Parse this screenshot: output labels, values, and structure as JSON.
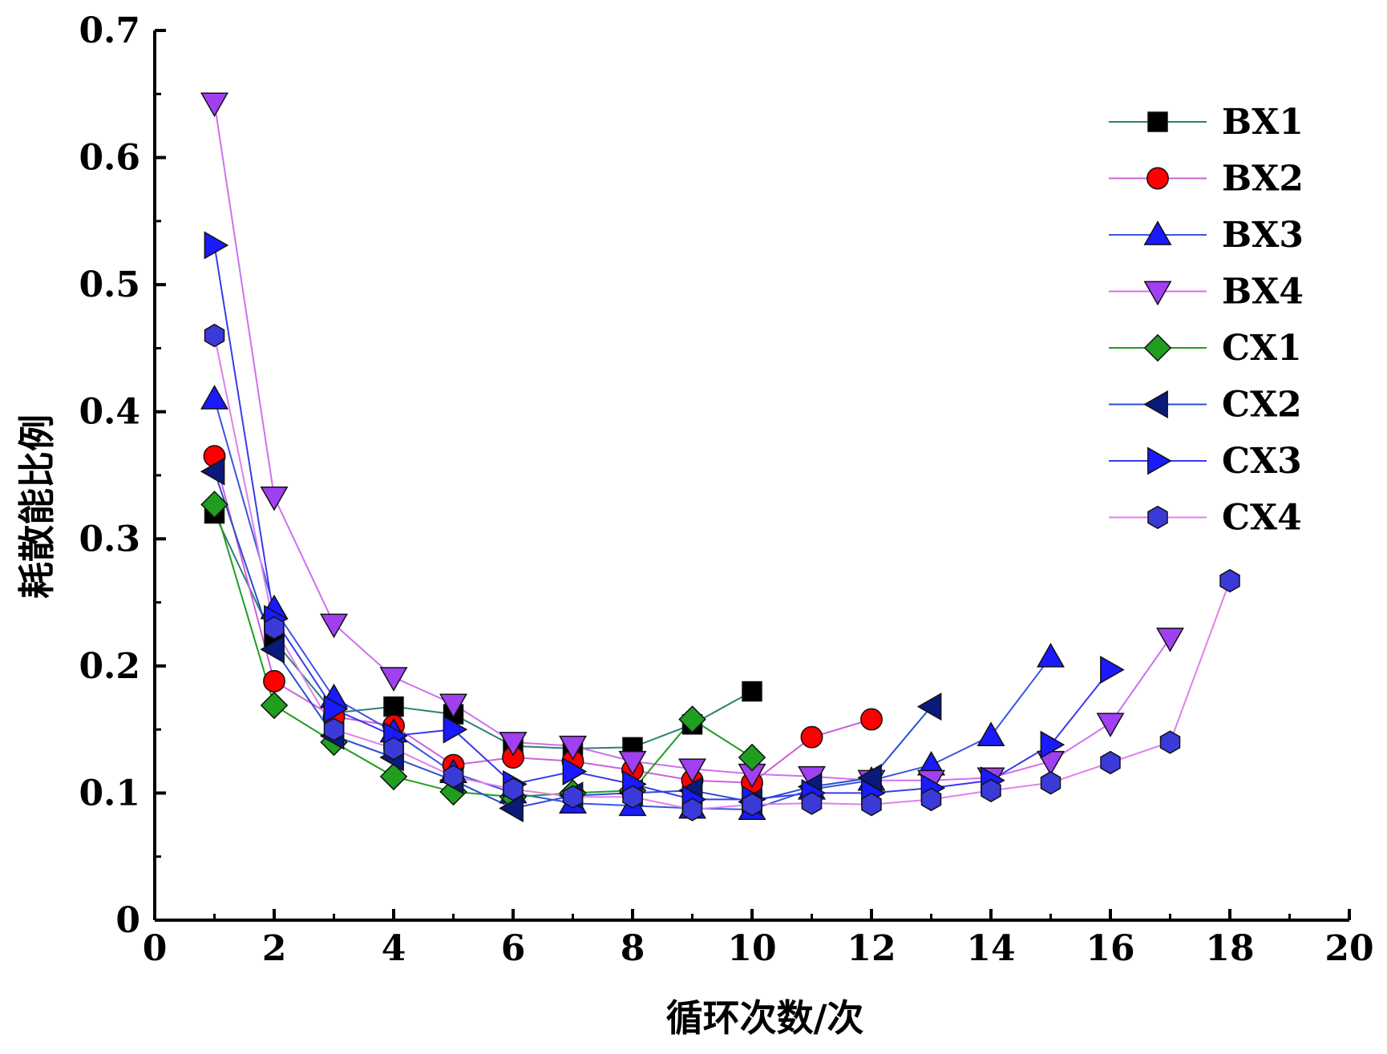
{
  "chart_data": {
    "type": "line",
    "xlabel": "循环次数/次",
    "ylabel": "耗散能比例",
    "xlim": [
      0,
      20
    ],
    "ylim": [
      0,
      0.7
    ],
    "x_ticks": [
      "0",
      "2",
      "4",
      "6",
      "8",
      "10",
      "12",
      "14",
      "16",
      "18",
      "20"
    ],
    "y_ticks": [
      "0",
      "0.1",
      "0.2",
      "0.3",
      "0.4",
      "0.5",
      "0.6",
      "0.7"
    ],
    "grid": false,
    "legend_position": "top-right",
    "series": [
      {
        "name": "BX1",
        "color": "#000000",
        "line_color": "#2e7f75",
        "marker": "square",
        "x": [
          1,
          2,
          3,
          4,
          5,
          6,
          7,
          8,
          9,
          10
        ],
        "y": [
          0.32,
          0.22,
          0.163,
          0.168,
          0.162,
          0.137,
          0.135,
          0.136,
          0.154,
          0.18
        ]
      },
      {
        "name": "BX2",
        "color": "#ff0000",
        "line_color": "#d060d8",
        "marker": "circle",
        "x": [
          1,
          2,
          3,
          4,
          5,
          6,
          7,
          8,
          9,
          10,
          11,
          12
        ],
        "y": [
          0.365,
          0.188,
          0.16,
          0.153,
          0.122,
          0.128,
          0.125,
          0.118,
          0.11,
          0.108,
          0.144,
          0.158
        ]
      },
      {
        "name": "BX3",
        "color": "#1a1aff",
        "line_color": "#3a55e0",
        "marker": "triangle-up",
        "x": [
          1,
          2,
          3,
          4,
          5,
          6,
          7,
          8,
          9,
          10,
          11,
          12,
          13,
          14,
          15
        ],
        "y": [
          0.41,
          0.245,
          0.175,
          0.148,
          0.116,
          0.1,
          0.092,
          0.09,
          0.088,
          0.087,
          0.103,
          0.11,
          0.122,
          0.145,
          0.207
        ]
      },
      {
        "name": "BX4",
        "color": "#a040f0",
        "line_color": "#d070ee",
        "marker": "triangle-down",
        "x": [
          1,
          2,
          3,
          4,
          5,
          6,
          7,
          8,
          9,
          10,
          11,
          12,
          13,
          14,
          15,
          16,
          17
        ],
        "y": [
          0.643,
          0.333,
          0.233,
          0.191,
          0.17,
          0.14,
          0.137,
          0.125,
          0.119,
          0.115,
          0.113,
          0.11,
          0.11,
          0.112,
          0.125,
          0.155,
          0.222
        ]
      },
      {
        "name": "CX1",
        "color": "#1f9e1f",
        "line_color": "#1f9e1f",
        "marker": "diamond",
        "x": [
          1,
          2,
          3,
          4,
          5,
          6,
          7,
          8,
          9,
          10
        ],
        "y": [
          0.327,
          0.169,
          0.14,
          0.113,
          0.101,
          0.097,
          0.1,
          0.102,
          0.158,
          0.128
        ]
      },
      {
        "name": "CX2",
        "color": "#0a1a7a",
        "line_color": "#2a4fd0",
        "marker": "triangle-left",
        "x": [
          1,
          2,
          3,
          4,
          5,
          6,
          7,
          8,
          9,
          10,
          11,
          12,
          13
        ],
        "y": [
          0.353,
          0.213,
          0.145,
          0.128,
          0.11,
          0.088,
          0.098,
          0.1,
          0.102,
          0.093,
          0.105,
          0.112,
          0.168
        ]
      },
      {
        "name": "CX3",
        "color": "#1a1aff",
        "line_color": "#3a3aee",
        "marker": "triangle-right",
        "x": [
          1,
          2,
          3,
          4,
          5,
          6,
          7,
          8,
          9,
          10,
          11,
          12,
          13,
          14,
          15,
          16
        ],
        "y": [
          0.531,
          0.237,
          0.166,
          0.145,
          0.15,
          0.107,
          0.117,
          0.107,
          0.095,
          0.095,
          0.1,
          0.1,
          0.104,
          0.11,
          0.138,
          0.197
        ]
      },
      {
        "name": "CX4",
        "color": "#3a3ad8",
        "line_color": "#e080e8",
        "marker": "hexagon",
        "x": [
          1,
          2,
          3,
          4,
          5,
          6,
          7,
          8,
          9,
          10,
          11,
          12,
          13,
          14,
          15,
          16,
          17,
          18
        ],
        "y": [
          0.46,
          0.23,
          0.15,
          0.135,
          0.113,
          0.103,
          0.097,
          0.097,
          0.087,
          0.091,
          0.092,
          0.091,
          0.095,
          0.102,
          0.108,
          0.124,
          0.14,
          0.267
        ]
      }
    ]
  }
}
